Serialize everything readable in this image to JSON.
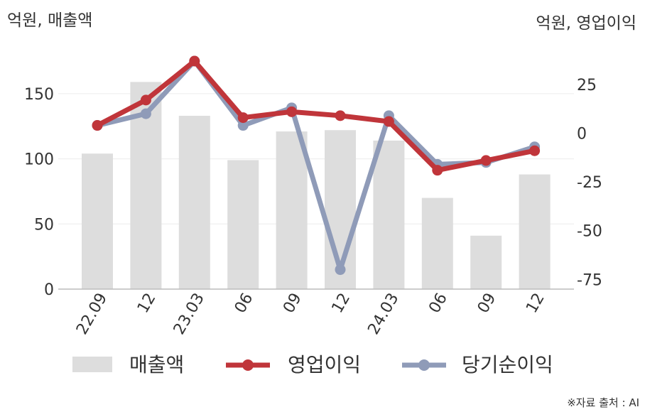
{
  "chart_data": {
    "type": "bar",
    "left_unit_label": "억원, 매출액",
    "right_unit_label": "억원, 영업이익",
    "categories": [
      "22.09",
      "12",
      "23.03",
      "06",
      "09",
      "12",
      "24.03",
      "06",
      "09",
      "12"
    ],
    "series": [
      {
        "name": "매출액",
        "type": "bar",
        "axis": "left",
        "color": "#dddddd",
        "values": [
          104,
          159,
          133,
          99,
          121,
          122,
          114,
          70,
          41,
          88
        ]
      },
      {
        "name": "영업이익",
        "type": "line",
        "axis": "right",
        "color": "#c0353a",
        "values": [
          4,
          17,
          37,
          8,
          11,
          9,
          6,
          -19,
          -14,
          -9
        ]
      },
      {
        "name": "당기순이익",
        "type": "line",
        "axis": "right",
        "color": "#8f9bb8",
        "values": [
          4,
          10,
          37,
          4,
          13,
          null,
          9,
          -16,
          -15,
          -7
        ]
      }
    ],
    "left_axis": {
      "ylim": [
        0,
        175
      ],
      "ticks": [
        0,
        50,
        100,
        150
      ]
    },
    "right_axis": {
      "ylim": [
        -80,
        37
      ],
      "ticks": [
        25,
        0,
        -25,
        -50,
        -75
      ]
    },
    "anomaly_point": {
      "series": "당기순이익",
      "index": 5,
      "value": -70
    },
    "legend_position": "bottom",
    "grid": true
  },
  "source_note": "※자료 출처 : AI"
}
